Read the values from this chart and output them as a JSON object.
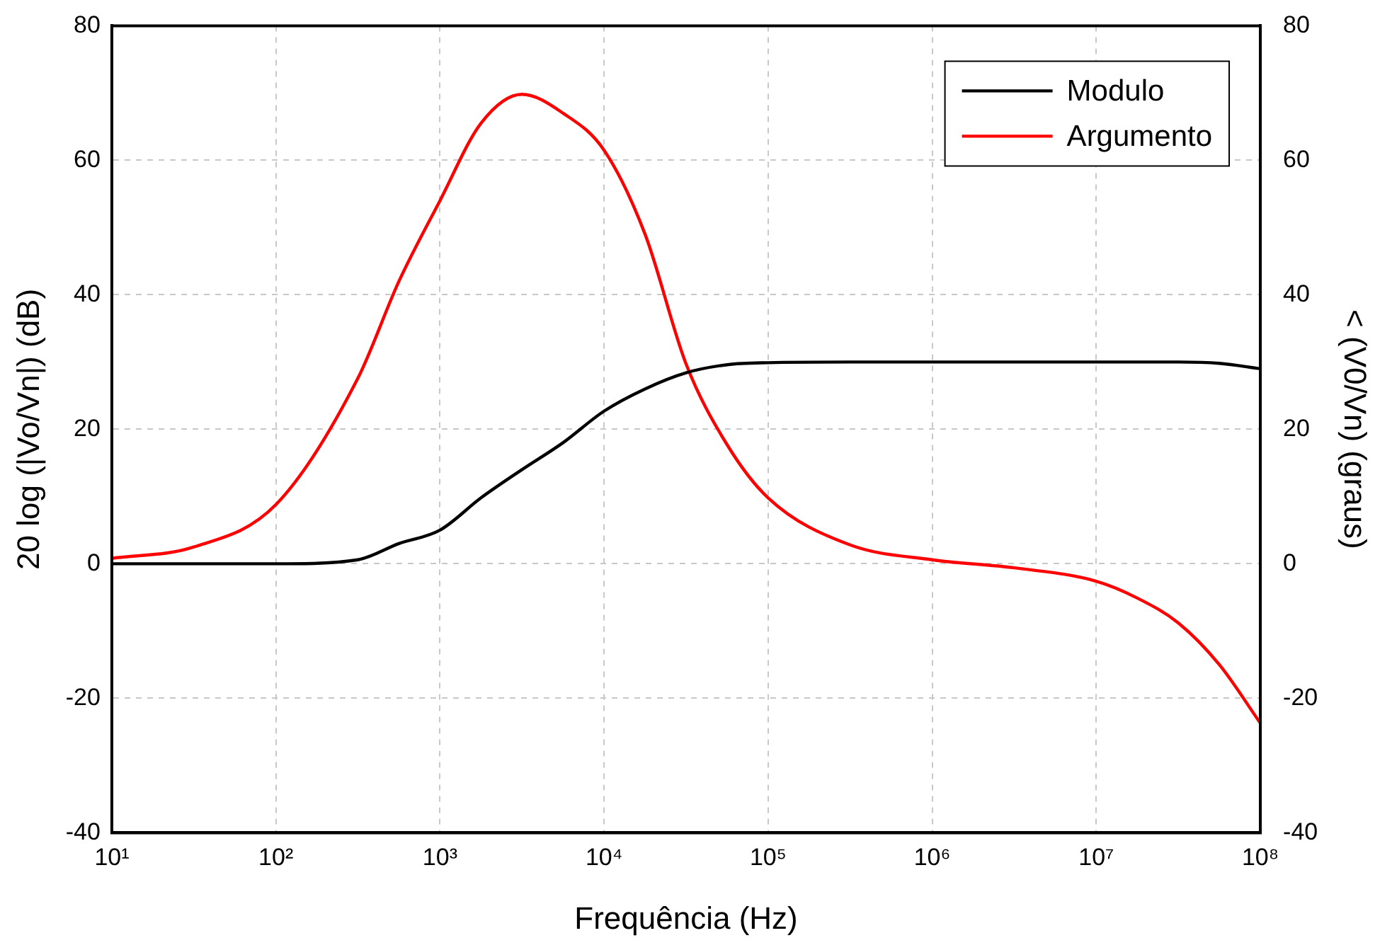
{
  "chart_data": {
    "type": "line",
    "xlabel": "Frequência (Hz)",
    "ylabel": "20 log (|Vo/Vn|) (dB)",
    "y2label": "< (V0/Vn) (graus)",
    "x": [
      10,
      31.6,
      100,
      316,
      562,
      1000,
      1778,
      3162,
      5623,
      10000,
      17783,
      31623,
      56234,
      100000,
      316228,
      1000000,
      3162278,
      10000000,
      17783000,
      31623000,
      56234000,
      100000000
    ],
    "series": [
      {
        "name": "Modulo",
        "color": "#000000",
        "values": [
          0,
          0,
          0,
          0.6,
          3,
          5,
          9.8,
          14,
          18,
          22.7,
          26,
          28.4,
          29.6,
          29.9,
          30,
          30,
          30,
          30,
          30,
          30,
          29.8,
          29
        ]
      },
      {
        "name": "Argumento",
        "color": "#ff0000",
        "axis": "y2",
        "values": [
          0.8,
          2.5,
          8.8,
          27.6,
          42,
          54,
          65.5,
          69.8,
          67,
          61.5,
          49,
          29.7,
          17.7,
          9.8,
          2.8,
          0.6,
          -0.6,
          -2.6,
          -5.1,
          -8.8,
          -15,
          -23.7
        ]
      }
    ],
    "log": "x",
    "xlim": [
      10,
      100000000
    ],
    "xticks": [
      {
        "value": 10,
        "label": "10¹"
      },
      {
        "value": 100,
        "label": "10²"
      },
      {
        "value": 1000,
        "label": "10³"
      },
      {
        "value": 10000,
        "label": "10⁴"
      },
      {
        "value": 100000,
        "label": "10⁵"
      },
      {
        "value": 1000000,
        "label": "10⁶"
      },
      {
        "value": 10000000,
        "label": "10⁷"
      },
      {
        "value": 100000000,
        "label": "10⁸"
      }
    ],
    "ylim": [
      -40,
      80
    ],
    "yticks": [
      -40,
      -20,
      0,
      20,
      40,
      60,
      80
    ],
    "y2lim": [
      -40,
      80
    ],
    "y2ticks": [
      -40,
      -20,
      0,
      20,
      40,
      60,
      80
    ],
    "grid": true,
    "legend": "top right",
    "marker": "none",
    "line_style": "solid"
  }
}
